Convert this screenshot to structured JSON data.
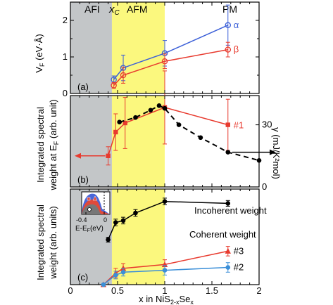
{
  "chart_data": [
    {
      "panel": "(a)",
      "type": "line",
      "ylabel_main": "V",
      "ylabel_sub": "F",
      "ylabel_unit": " (eV·Å)",
      "ylim": [
        0,
        2.5
      ],
      "yticks": [
        "0",
        "1",
        "2"
      ],
      "series": [
        {
          "name": "α",
          "color": "#3b5fd8",
          "marker": "open-circle",
          "x": [
            0.46,
            0.56,
            1.0,
            1.67
          ],
          "y": [
            0.38,
            0.7,
            1.1,
            1.87
          ],
          "err": [
            0.1,
            0.35,
            0.35,
            0.55
          ]
        },
        {
          "name": "β",
          "color": "#e83a2e",
          "marker": "open-circle",
          "x": [
            0.46,
            0.56,
            1.0,
            1.67
          ],
          "y": [
            0.22,
            0.5,
            0.88,
            1.2
          ],
          "err": [
            0.08,
            0.22,
            0.2,
            0.2
          ]
        }
      ]
    },
    {
      "panel": "(b)",
      "type": "line",
      "ylabel_line1": "Integrated spectral",
      "ylabel_line2_main": "weight at E",
      "ylabel_line2_sub": "F",
      "ylabel_line2_unit": " (arb. unit)",
      "right_axis_label": "γ (mJ/K²mol)",
      "right_yticks": [
        "0",
        "30"
      ],
      "series": [
        {
          "name": "#1",
          "color": "#e83a2e",
          "marker": "filled-square",
          "x": [
            0.4,
            0.48,
            0.58,
            1.0,
            1.67
          ],
          "y": [
            0.34,
            0.6,
            0.7,
            0.87,
            0.68
          ],
          "err": [
            0.1,
            0.2,
            0.28,
            0.4,
            0.28
          ]
        },
        {
          "name": "γ",
          "color": "#000000",
          "marker": "filled-circle",
          "dashed": true,
          "x": [
            0.52,
            0.69,
            0.85,
            0.94,
            1.0,
            1.15,
            1.38,
            1.67,
            2.0
          ],
          "y": [
            0.71,
            0.76,
            0.84,
            0.89,
            0.86,
            0.68,
            0.54,
            0.38,
            0.29
          ],
          "err": [
            0,
            0,
            0,
            0,
            0,
            0,
            0,
            0,
            0
          ]
        }
      ]
    },
    {
      "panel": "(c)",
      "type": "line",
      "ylabel_line1": "Integrated spectral",
      "ylabel_line2": "weight (arb. units)",
      "series": [
        {
          "name": "Incoherent weight",
          "color": "#000000",
          "marker": "filled-circle",
          "x": [
            0.4,
            0.48,
            0.56,
            0.69,
            1.0,
            1.67
          ],
          "y": [
            0.47,
            0.65,
            0.67,
            0.75,
            0.87,
            0.85
          ],
          "err": [
            0.025,
            0.035,
            0.035,
            0.035,
            0.035,
            0.03
          ]
        },
        {
          "name": "#3",
          "color": "#e83a2e",
          "marker": "filled-triangle",
          "x": [
            0.35,
            0.48,
            0.56,
            1.0,
            1.67
          ],
          "y": [
            0.0,
            0.12,
            0.17,
            0.21,
            0.35
          ],
          "err": [
            0,
            0.05,
            0.05,
            0.05,
            0.05
          ]
        },
        {
          "name": "#2",
          "color": "#3b8fd8",
          "marker": "filled-circle",
          "x": [
            0.35,
            0.48,
            0.56,
            1.0,
            1.67
          ],
          "y": [
            0.0,
            0.1,
            0.13,
            0.15,
            0.18
          ],
          "err": [
            0,
            0.04,
            0.04,
            0.05,
            0.05
          ]
        }
      ],
      "annotations": [
        "Incoherent weight",
        "Coherent weight"
      ]
    }
  ],
  "xaxis": {
    "label_pre": "x in NiS",
    "label_sub1": "2-x",
    "label_mid": "Se",
    "label_sub2": "x",
    "xlim": [
      0,
      2
    ],
    "ticks": [
      "0",
      "0.5",
      "1",
      "1.5",
      "2"
    ]
  },
  "regions": [
    {
      "name": "AFI",
      "label": "AFI",
      "from": 0,
      "to": 0.44,
      "color": "#c3c6c8"
    },
    {
      "name": "AFM",
      "label": "AFM",
      "from": 0.44,
      "to": 1.0,
      "color": "#fbf87e"
    },
    {
      "name": "PM",
      "label": "PM",
      "from": 1.0,
      "to": 2.0,
      "color": "#ffffff"
    }
  ],
  "xc_label": "x",
  "xc_sub": "C",
  "inset": {
    "ticks": [
      "-0.4",
      "0"
    ],
    "label": "E-E",
    "label_sub": "F",
    "label_unit": "(eV)"
  }
}
